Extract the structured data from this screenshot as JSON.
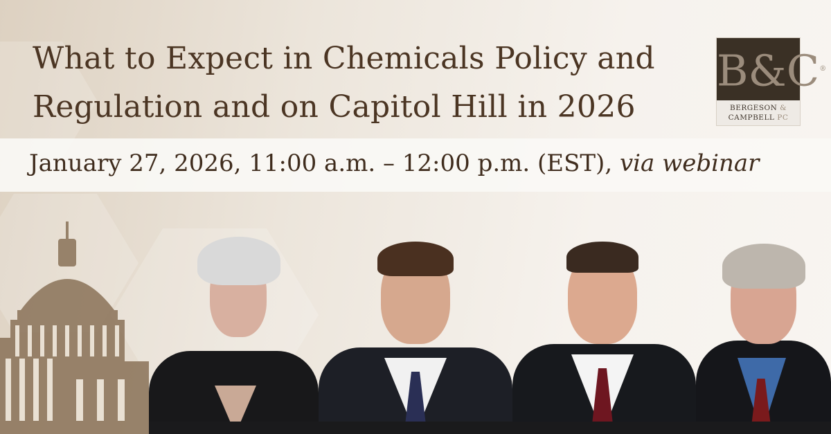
{
  "banner": {
    "title_line1": "What to Expect in Chemicals Policy and",
    "title_line2": "Regulation and on Capitol Hill in 2026",
    "date_text": "January 27, 2026, 11:00 a.m. – 12:00 p.m. (EST),",
    "date_via": "via webinar"
  },
  "logo": {
    "monogram": "B&C",
    "registered": "®",
    "name_line1": "BERGESON",
    "name_amp": "&",
    "name_line2": "CAMPBELL",
    "name_suffix": "PC"
  },
  "colors": {
    "title": "#4b3523",
    "logo_dark": "#3a3025",
    "logo_accent": "#9b8c7c",
    "background": "#ece5db"
  },
  "images": [
    "capitol-dome-illustration",
    "speaker-photo-1",
    "speaker-photo-2",
    "speaker-photo-3",
    "speaker-photo-4"
  ]
}
